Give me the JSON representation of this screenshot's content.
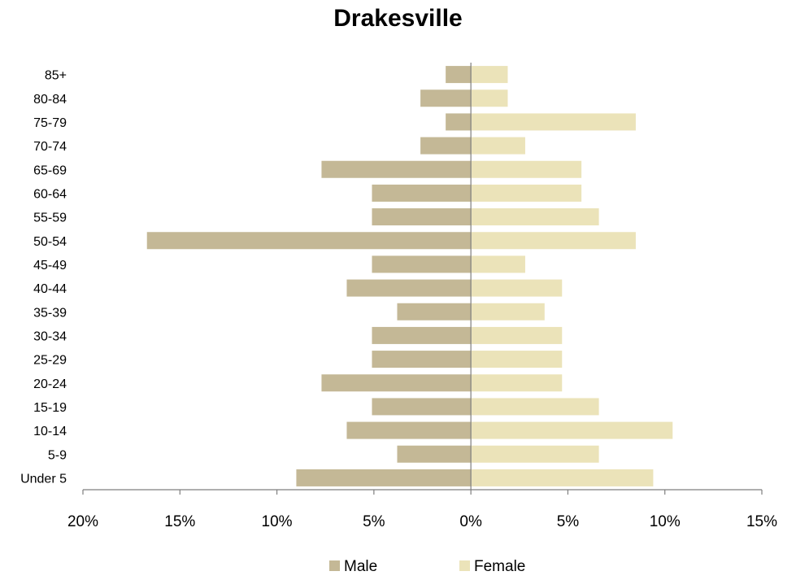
{
  "chart_data": {
    "type": "bar",
    "orientation": "horizontal",
    "layout": "population-pyramid",
    "title": "Drakesville",
    "categories": [
      "85+",
      "80-84",
      "75-79",
      "70-74",
      "65-69",
      "60-64",
      "55-59",
      "50-54",
      "45-49",
      "40-44",
      "35-39",
      "30-34",
      "25-29",
      "20-24",
      "15-19",
      "10-14",
      "5-9",
      "Under 5"
    ],
    "series": [
      {
        "name": "Male",
        "color": "#c4b896",
        "values": [
          1.3,
          2.6,
          1.3,
          2.6,
          7.7,
          5.1,
          5.1,
          16.7,
          5.1,
          6.4,
          3.8,
          5.1,
          5.1,
          7.7,
          5.1,
          6.4,
          3.8,
          9.0
        ]
      },
      {
        "name": "Female",
        "color": "#ebe3b9",
        "values": [
          1.9,
          1.9,
          8.5,
          2.8,
          5.7,
          5.7,
          6.6,
          8.5,
          2.8,
          4.7,
          3.8,
          4.7,
          4.7,
          4.7,
          6.6,
          10.4,
          6.6,
          9.4
        ]
      }
    ],
    "xlim": [
      -20,
      15
    ],
    "x_ticks": [
      -20,
      -15,
      -10,
      -5,
      0,
      5,
      10,
      15
    ],
    "x_tick_labels": [
      "20%",
      "15%",
      "10%",
      "5%",
      "0%",
      "5%",
      "10%",
      "15%"
    ],
    "legend_position": "bottom",
    "grid": false
  }
}
